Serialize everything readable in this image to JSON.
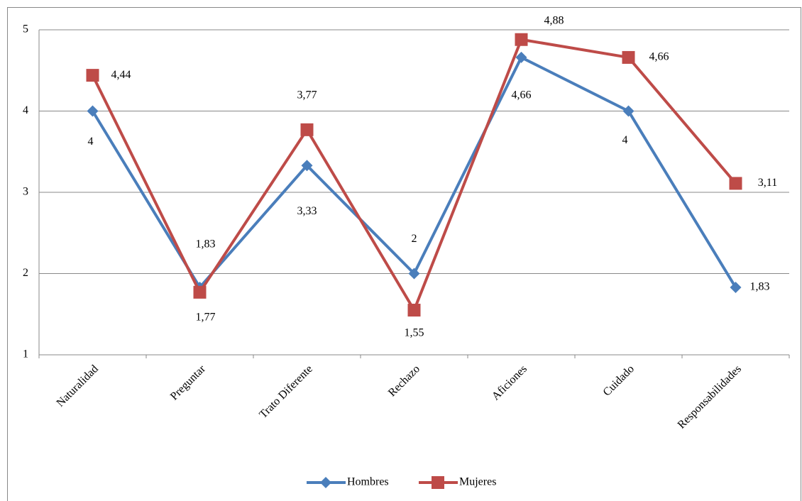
{
  "chart_data": {
    "type": "line",
    "categories": [
      "Naturalidad",
      "Preguntar",
      "Trato Diferente",
      "Rechazo",
      "Aficiones",
      "Cuidado",
      "Responsabilidades"
    ],
    "series": [
      {
        "name": "Hombres",
        "color": "#4a7ebb",
        "marker": "diamond",
        "values": [
          4,
          1.83,
          3.33,
          2,
          4.66,
          4,
          1.83
        ],
        "value_labels": [
          "4",
          "1,83",
          "3,33",
          "2",
          "4,66",
          "4",
          "1,83"
        ]
      },
      {
        "name": "Mujeres",
        "color": "#be4b48",
        "marker": "square",
        "values": [
          4.44,
          1.77,
          3.77,
          1.55,
          4.88,
          4.66,
          3.11
        ],
        "value_labels": [
          "4,44",
          "1,77",
          "3,77",
          "1,55",
          "4,88",
          "4,66",
          "3,11"
        ]
      }
    ],
    "ylim": [
      1,
      5
    ],
    "yticks": [
      1,
      2,
      3,
      4,
      5
    ],
    "grid": true,
    "legend": "bottom"
  }
}
